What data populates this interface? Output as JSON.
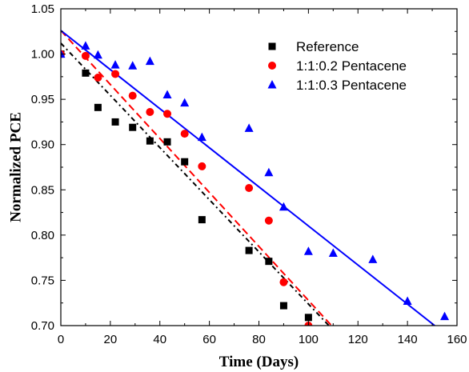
{
  "chart_data": {
    "type": "scatter",
    "title": "",
    "xlabel": "Time (Days)",
    "ylabel": "Normalized PCE",
    "xlim": [
      0,
      160
    ],
    "ylim": [
      0.7,
      1.05
    ],
    "xticks": [
      0,
      20,
      40,
      60,
      80,
      100,
      120,
      140,
      160
    ],
    "xtick_labels": [
      "0",
      "20",
      "40",
      "60",
      "80",
      "100",
      "120",
      "140",
      "160"
    ],
    "yticks": [
      0.7,
      0.75,
      0.8,
      0.85,
      0.9,
      0.95,
      1.0,
      1.05
    ],
    "ytick_labels": [
      "0.70",
      "0.75",
      "0.80",
      "0.85",
      "0.90",
      "0.95",
      "1.00",
      "1.05"
    ],
    "grid": false,
    "legend_position": "top-right",
    "series": [
      {
        "name": "Reference",
        "color": "#000000",
        "marker": "square",
        "x": [
          0,
          10,
          15,
          22,
          29,
          36,
          43,
          50,
          57,
          76,
          84,
          90,
          100
        ],
        "y": [
          1.0,
          0.979,
          0.941,
          0.925,
          0.919,
          0.904,
          0.903,
          0.881,
          0.817,
          0.783,
          0.771,
          0.722,
          0.709
        ],
        "fit": {
          "style": "dash-dot",
          "x": [
            0,
            110
          ],
          "y": [
            1.012,
            0.695
          ]
        }
      },
      {
        "name": "1:1:0.2 Pentacene",
        "color": "#ff0000",
        "marker": "circle",
        "x": [
          0,
          10,
          15,
          22,
          29,
          36,
          43,
          50,
          57,
          76,
          84,
          90,
          100
        ],
        "y": [
          1.0,
          0.998,
          0.974,
          0.978,
          0.954,
          0.936,
          0.934,
          0.912,
          0.876,
          0.852,
          0.816,
          0.748,
          0.7
        ],
        "fit": {
          "style": "dashed",
          "x": [
            0,
            110
          ],
          "y": [
            1.026,
            0.698
          ]
        }
      },
      {
        "name": "1:1:0.3 Pentacene",
        "color": "#0000ff",
        "marker": "triangle",
        "x": [
          0,
          10,
          15,
          22,
          29,
          36,
          43,
          50,
          57,
          76,
          84,
          90,
          100,
          110,
          126,
          140,
          155
        ],
        "y": [
          1.0,
          1.009,
          0.999,
          0.988,
          0.987,
          0.992,
          0.955,
          0.946,
          0.908,
          0.918,
          0.869,
          0.831,
          0.782,
          0.78,
          0.773,
          0.727,
          0.71
        ],
        "fit": {
          "style": "solid",
          "x": [
            0,
            151
          ],
          "y": [
            1.026,
            0.7
          ]
        }
      }
    ]
  }
}
